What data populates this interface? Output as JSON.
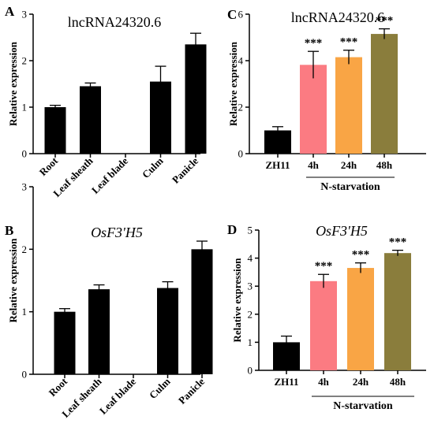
{
  "chart_data": [
    {
      "panel_label": "A",
      "type": "bar",
      "title": "lncRNA24320.6",
      "title_italic": false,
      "categories": [
        "Root",
        "Leaf sheath",
        "Leaf blade",
        "Culm",
        "Panicle"
      ],
      "values": [
        1.0,
        1.45,
        0,
        1.55,
        2.35
      ],
      "errors": [
        0.04,
        0.07,
        0,
        0.33,
        0.24
      ],
      "ylabel": "Relative expression",
      "xlabel": "",
      "ylim": [
        0,
        3
      ],
      "yticks": [
        "0",
        "1",
        "2",
        "3"
      ],
      "colors": [
        "#000000",
        "#000000",
        "#000000",
        "#000000",
        "#000000"
      ],
      "x_tick_rotation": "rotated",
      "significance": [],
      "group_label": ""
    },
    {
      "panel_label": "B",
      "type": "bar",
      "title": "OsF3'H5",
      "title_italic": true,
      "categories": [
        "Root",
        "Leaf sheath",
        "Leaf blade",
        "Culm",
        "Panicle"
      ],
      "values": [
        1.0,
        1.36,
        0,
        1.38,
        2.0
      ],
      "errors": [
        0.05,
        0.07,
        0,
        0.1,
        0.13
      ],
      "ylabel": "Relative expression",
      "xlabel": "",
      "ylim": [
        0,
        3
      ],
      "yticks": [
        "0",
        "1",
        "2",
        "3"
      ],
      "colors": [
        "#000000",
        "#000000",
        "#000000",
        "#000000",
        "#000000"
      ],
      "x_tick_rotation": "rotated",
      "significance": [],
      "group_label": ""
    },
    {
      "panel_label": "C",
      "type": "bar",
      "title": "lncRNA24320.6",
      "title_italic": false,
      "categories": [
        "ZH11",
        "4h",
        "24h",
        "48h"
      ],
      "values": [
        1.0,
        3.82,
        4.15,
        5.15
      ],
      "errors": [
        0.16,
        0.58,
        0.3,
        0.22
      ],
      "ylabel": "Relative expression",
      "xlabel": "",
      "ylim": [
        0,
        6
      ],
      "yticks": [
        "0",
        "2",
        "4",
        "6"
      ],
      "colors": [
        "#000000",
        "#fb7b82",
        "#f9a545",
        "#8a7d3c"
      ],
      "x_tick_rotation": "none",
      "significance": [
        "",
        "***",
        "***",
        "***"
      ],
      "group_label": "N-starvation"
    },
    {
      "panel_label": "D",
      "type": "bar",
      "title": "OsF3'H5",
      "title_italic": true,
      "categories": [
        "ZH11",
        "4h",
        "24h",
        "48h"
      ],
      "values": [
        1.0,
        3.18,
        3.65,
        4.18
      ],
      "errors": [
        0.22,
        0.24,
        0.18,
        0.1
      ],
      "ylabel": "Relative expression",
      "xlabel": "",
      "ylim": [
        0,
        5
      ],
      "yticks": [
        "0",
        "1",
        "2",
        "3",
        "4",
        "5"
      ],
      "colors": [
        "#000000",
        "#fb7b82",
        "#f9a545",
        "#8a7d3c"
      ],
      "x_tick_rotation": "none",
      "significance": [
        "",
        "***",
        "***",
        "***"
      ],
      "group_label": "N-starvation"
    }
  ]
}
